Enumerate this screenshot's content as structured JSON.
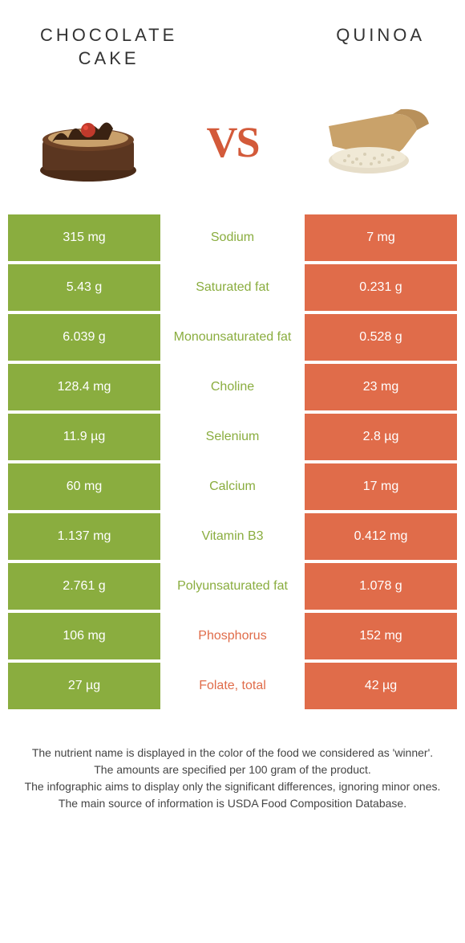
{
  "header": {
    "left_title": "CHOCOLATE\nCAKE",
    "right_title": "QUINOA"
  },
  "vs_label": "VS",
  "colors": {
    "left_bg": "#8aad3f",
    "right_bg": "#e06c4a",
    "left_text": "#8aad3f",
    "right_text": "#e06c4a"
  },
  "table": {
    "rows": [
      {
        "left": "315 mg",
        "label": "Sodium",
        "right": "7 mg",
        "winner": "left"
      },
      {
        "left": "5.43 g",
        "label": "Saturated fat",
        "right": "0.231 g",
        "winner": "left"
      },
      {
        "left": "6.039 g",
        "label": "Monounsaturated fat",
        "right": "0.528 g",
        "winner": "left"
      },
      {
        "left": "128.4 mg",
        "label": "Choline",
        "right": "23 mg",
        "winner": "left"
      },
      {
        "left": "11.9 µg",
        "label": "Selenium",
        "right": "2.8 µg",
        "winner": "left"
      },
      {
        "left": "60 mg",
        "label": "Calcium",
        "right": "17 mg",
        "winner": "left"
      },
      {
        "left": "1.137 mg",
        "label": "Vitamin B3",
        "right": "0.412 mg",
        "winner": "left"
      },
      {
        "left": "2.761 g",
        "label": "Polyunsaturated fat",
        "right": "1.078 g",
        "winner": "left"
      },
      {
        "left": "106 mg",
        "label": "Phosphorus",
        "right": "152 mg",
        "winner": "right"
      },
      {
        "left": "27 µg",
        "label": "Folate, total",
        "right": "42 µg",
        "winner": "right"
      }
    ]
  },
  "footnotes": {
    "line1": "The nutrient name is displayed in the color of the food we considered as 'winner'.",
    "line2": "The amounts are specified per 100 gram of the product.",
    "line3": "The infographic aims to display only the significant differences, ignoring minor ones.",
    "line4": "The main source of information is USDA Food Composition Database."
  }
}
